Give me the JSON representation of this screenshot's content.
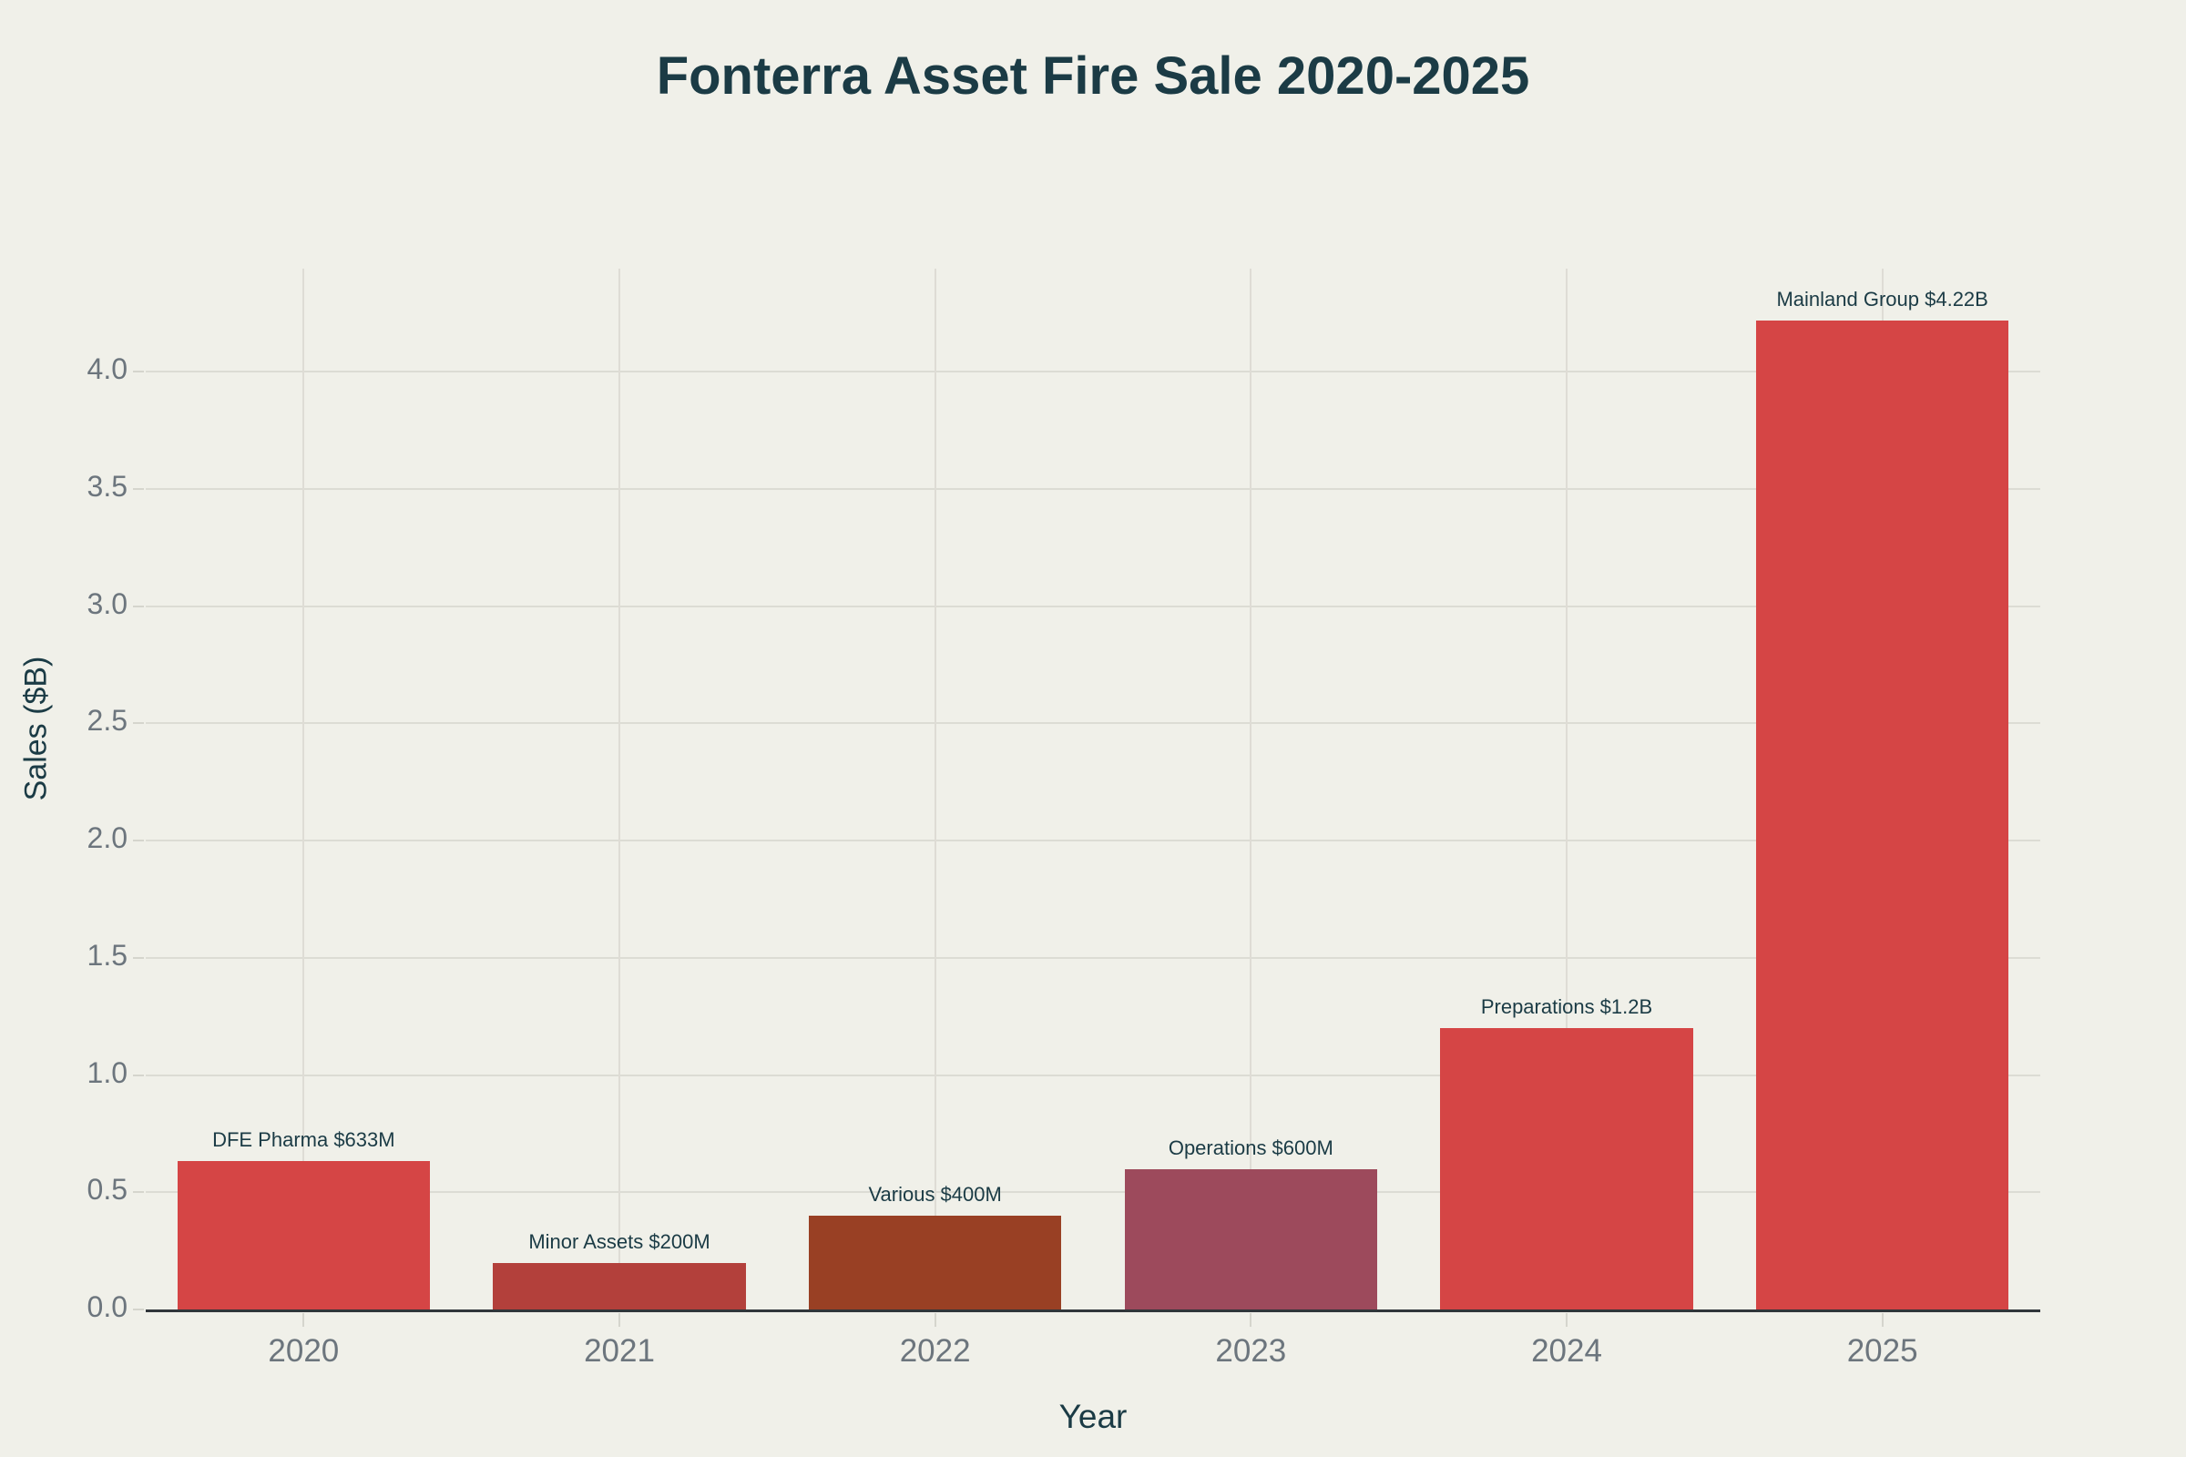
{
  "chart_data": {
    "type": "bar",
    "title": "Fonterra Asset Fire Sale 2020-2025",
    "xlabel": "Year",
    "ylabel": "Sales ($B)",
    "categories": [
      "2020",
      "2021",
      "2022",
      "2023",
      "2024",
      "2025"
    ],
    "values": [
      0.633,
      0.2,
      0.4,
      0.6,
      1.2,
      4.22
    ],
    "bar_labels": [
      "DFE Pharma $633M",
      "Minor Assets $200M",
      "Various $400M",
      "Operations $600M",
      "Preparations $1.2B",
      "Mainland Group $4.22B"
    ],
    "bar_colors": [
      "#d54545",
      "#b3403b",
      "#994024",
      "#9d4a5c",
      "#d54545",
      "#d54545"
    ],
    "ytick_labels": [
      "0.0",
      "0.5",
      "1.0",
      "1.5",
      "2.0",
      "2.5",
      "3.0",
      "3.5",
      "4.0"
    ],
    "ylim": [
      0,
      4.44
    ],
    "grid": true,
    "legend_position": "none",
    "colors": {
      "background": "#f0f0e9",
      "title_text": "#1b3b45",
      "tick_text": "#6c757d",
      "gridline": "#dcdcd4",
      "axis_line": "#30363a",
      "accent_red": "#d54545"
    }
  }
}
